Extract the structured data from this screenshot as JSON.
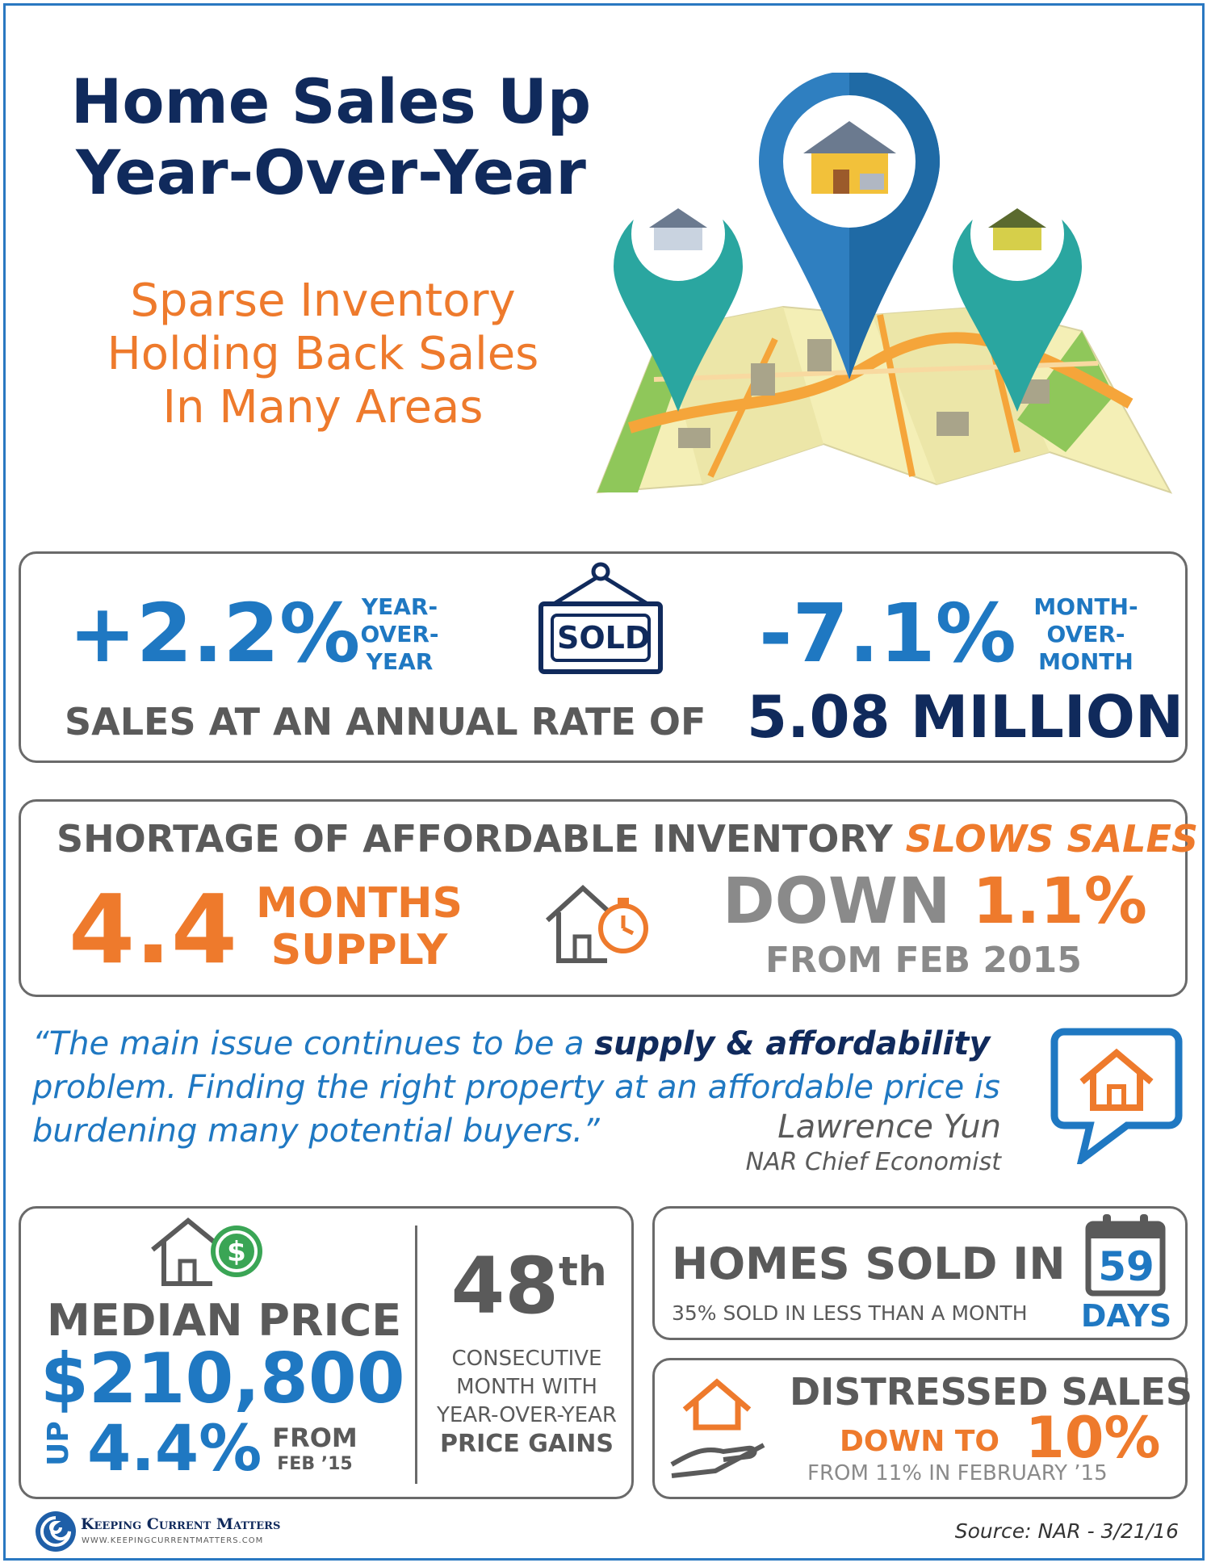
{
  "header": {
    "title_line1": "Home Sales Up",
    "title_line2": "Year-Over-Year",
    "subtitle_line1": "Sparse Inventory",
    "subtitle_line2": "Holding Back Sales",
    "subtitle_line3": "In Many Areas"
  },
  "sales": {
    "yoy_value": "+2.2%",
    "yoy_label_1": "YEAR-",
    "yoy_label_2": "OVER-",
    "yoy_label_3": "YEAR",
    "sold_sign": "SOLD",
    "mom_value": "-7.1%",
    "mom_label_1": "MONTH-",
    "mom_label_2": "OVER-",
    "mom_label_3": "MONTH",
    "rate_text": "SALES AT AN ANNUAL RATE OF",
    "rate_value": "5.08 MILLION"
  },
  "inventory": {
    "heading": "SHORTAGE OF AFFORDABLE INVENTORY",
    "heading_accent": "SLOWS SALES",
    "supply_value": "4.4",
    "supply_label_1": "MONTHS",
    "supply_label_2": "SUPPLY",
    "down_word": "DOWN",
    "down_value": "1.1%",
    "down_from": "FROM FEB 2015"
  },
  "quote": {
    "line1_start": "“The main issue continues to be a ",
    "line1_bold": "supply & affordability",
    "line2": "problem. Finding the right property at an affordable price is",
    "line3": "burdening many potential buyers.”",
    "author": "Lawrence Yun",
    "author_title": "NAR Chief Economist"
  },
  "median": {
    "label": "MEDIAN PRICE",
    "price": "$210,800",
    "up_word": "UP",
    "change": "4.4%",
    "from_1": "FROM",
    "from_2": "FEB ’15",
    "streak_number": "48",
    "streak_suffix": "th",
    "streak_1": "CONSECUTIVE",
    "streak_2": "MONTH WITH",
    "streak_3": "YEAR-OVER-YEAR",
    "streak_4": "PRICE GAINS"
  },
  "days": {
    "heading": "HOMES SOLD IN",
    "sub": "35% SOLD IN LESS THAN A MONTH",
    "calendar_number": "59",
    "days_word": "DAYS"
  },
  "distressed": {
    "heading": "DISTRESSED SALES",
    "down_to": "DOWN TO",
    "value": "10%",
    "from": "FROM 11% IN FEBRUARY ’15"
  },
  "footer": {
    "brand": "Keeping Current Matters",
    "url": "WWW.KEEPINGCURRENTMATTERS.COM",
    "source": "Source: NAR - 3/21/16"
  },
  "colors": {
    "navy": "#102a5c",
    "blue": "#1f78c2",
    "orange": "#ee7a2c",
    "gray": "#5a5a5a"
  }
}
